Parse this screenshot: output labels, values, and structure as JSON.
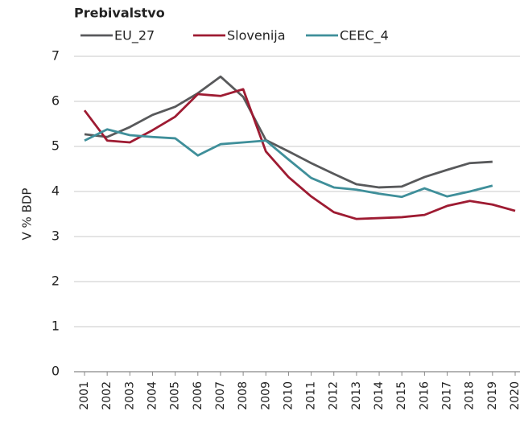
{
  "chart_data": {
    "type": "line",
    "title": "Prebivalstvo",
    "ylabel": "V % BDP",
    "categories": [
      "2001",
      "2002",
      "2003",
      "2004",
      "2005",
      "2006",
      "2007",
      "2008",
      "2009",
      "2010",
      "2011",
      "2012",
      "2013",
      "2014",
      "2015",
      "2016",
      "2017",
      "2018",
      "2019",
      "2020"
    ],
    "series": [
      {
        "name": "EU_27",
        "color": "#58595b",
        "values": [
          5.27,
          5.21,
          5.43,
          5.7,
          5.88,
          6.18,
          6.55,
          6.1,
          5.14,
          4.89,
          4.63,
          4.39,
          4.16,
          4.09,
          4.11,
          4.32,
          4.48,
          4.63,
          4.66,
          null
        ]
      },
      {
        "name": "Slovenija",
        "color": "#9e1b32",
        "values": [
          5.8,
          5.13,
          5.09,
          5.36,
          5.66,
          6.16,
          6.12,
          6.27,
          4.89,
          4.32,
          3.89,
          3.54,
          3.39,
          3.41,
          3.43,
          3.48,
          3.68,
          3.79,
          3.71,
          3.57
        ]
      },
      {
        "name": "CEEC_4",
        "color": "#3f8f9a",
        "values": [
          5.13,
          5.38,
          5.25,
          5.21,
          5.18,
          4.8,
          5.05,
          5.09,
          5.13,
          4.71,
          4.3,
          4.09,
          4.04,
          3.95,
          3.88,
          4.07,
          3.89,
          4.0,
          4.13,
          null
        ]
      }
    ],
    "ylim": [
      0,
      7
    ],
    "yticks": [
      0,
      1,
      2,
      3,
      4,
      5,
      6,
      7
    ],
    "grid": true,
    "legend": "top-left"
  }
}
